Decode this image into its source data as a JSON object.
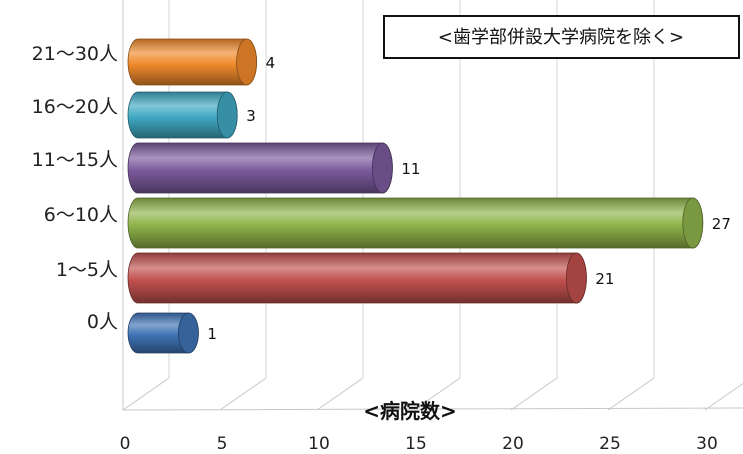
{
  "chart_data": {
    "type": "bar",
    "orientation": "horizontal",
    "style": "3d-cylinder",
    "categories": [
      "0人",
      "1～5人",
      "6～10人",
      "11～15人",
      "16～20人",
      "21～30人"
    ],
    "values": [
      1,
      21,
      27,
      11,
      3,
      4
    ],
    "colors": [
      "#3f73b5",
      "#c0504d",
      "#8fb34a",
      "#7b5a9c",
      "#3fa8c2",
      "#f08a2c"
    ],
    "xlabel": "<病院数>",
    "xlim": [
      0,
      30
    ],
    "xticks": [
      0,
      5,
      10,
      15,
      20,
      25,
      30
    ],
    "annotation": "<歯学部併設大学病院を除く>",
    "grid": true,
    "legend": "none"
  }
}
